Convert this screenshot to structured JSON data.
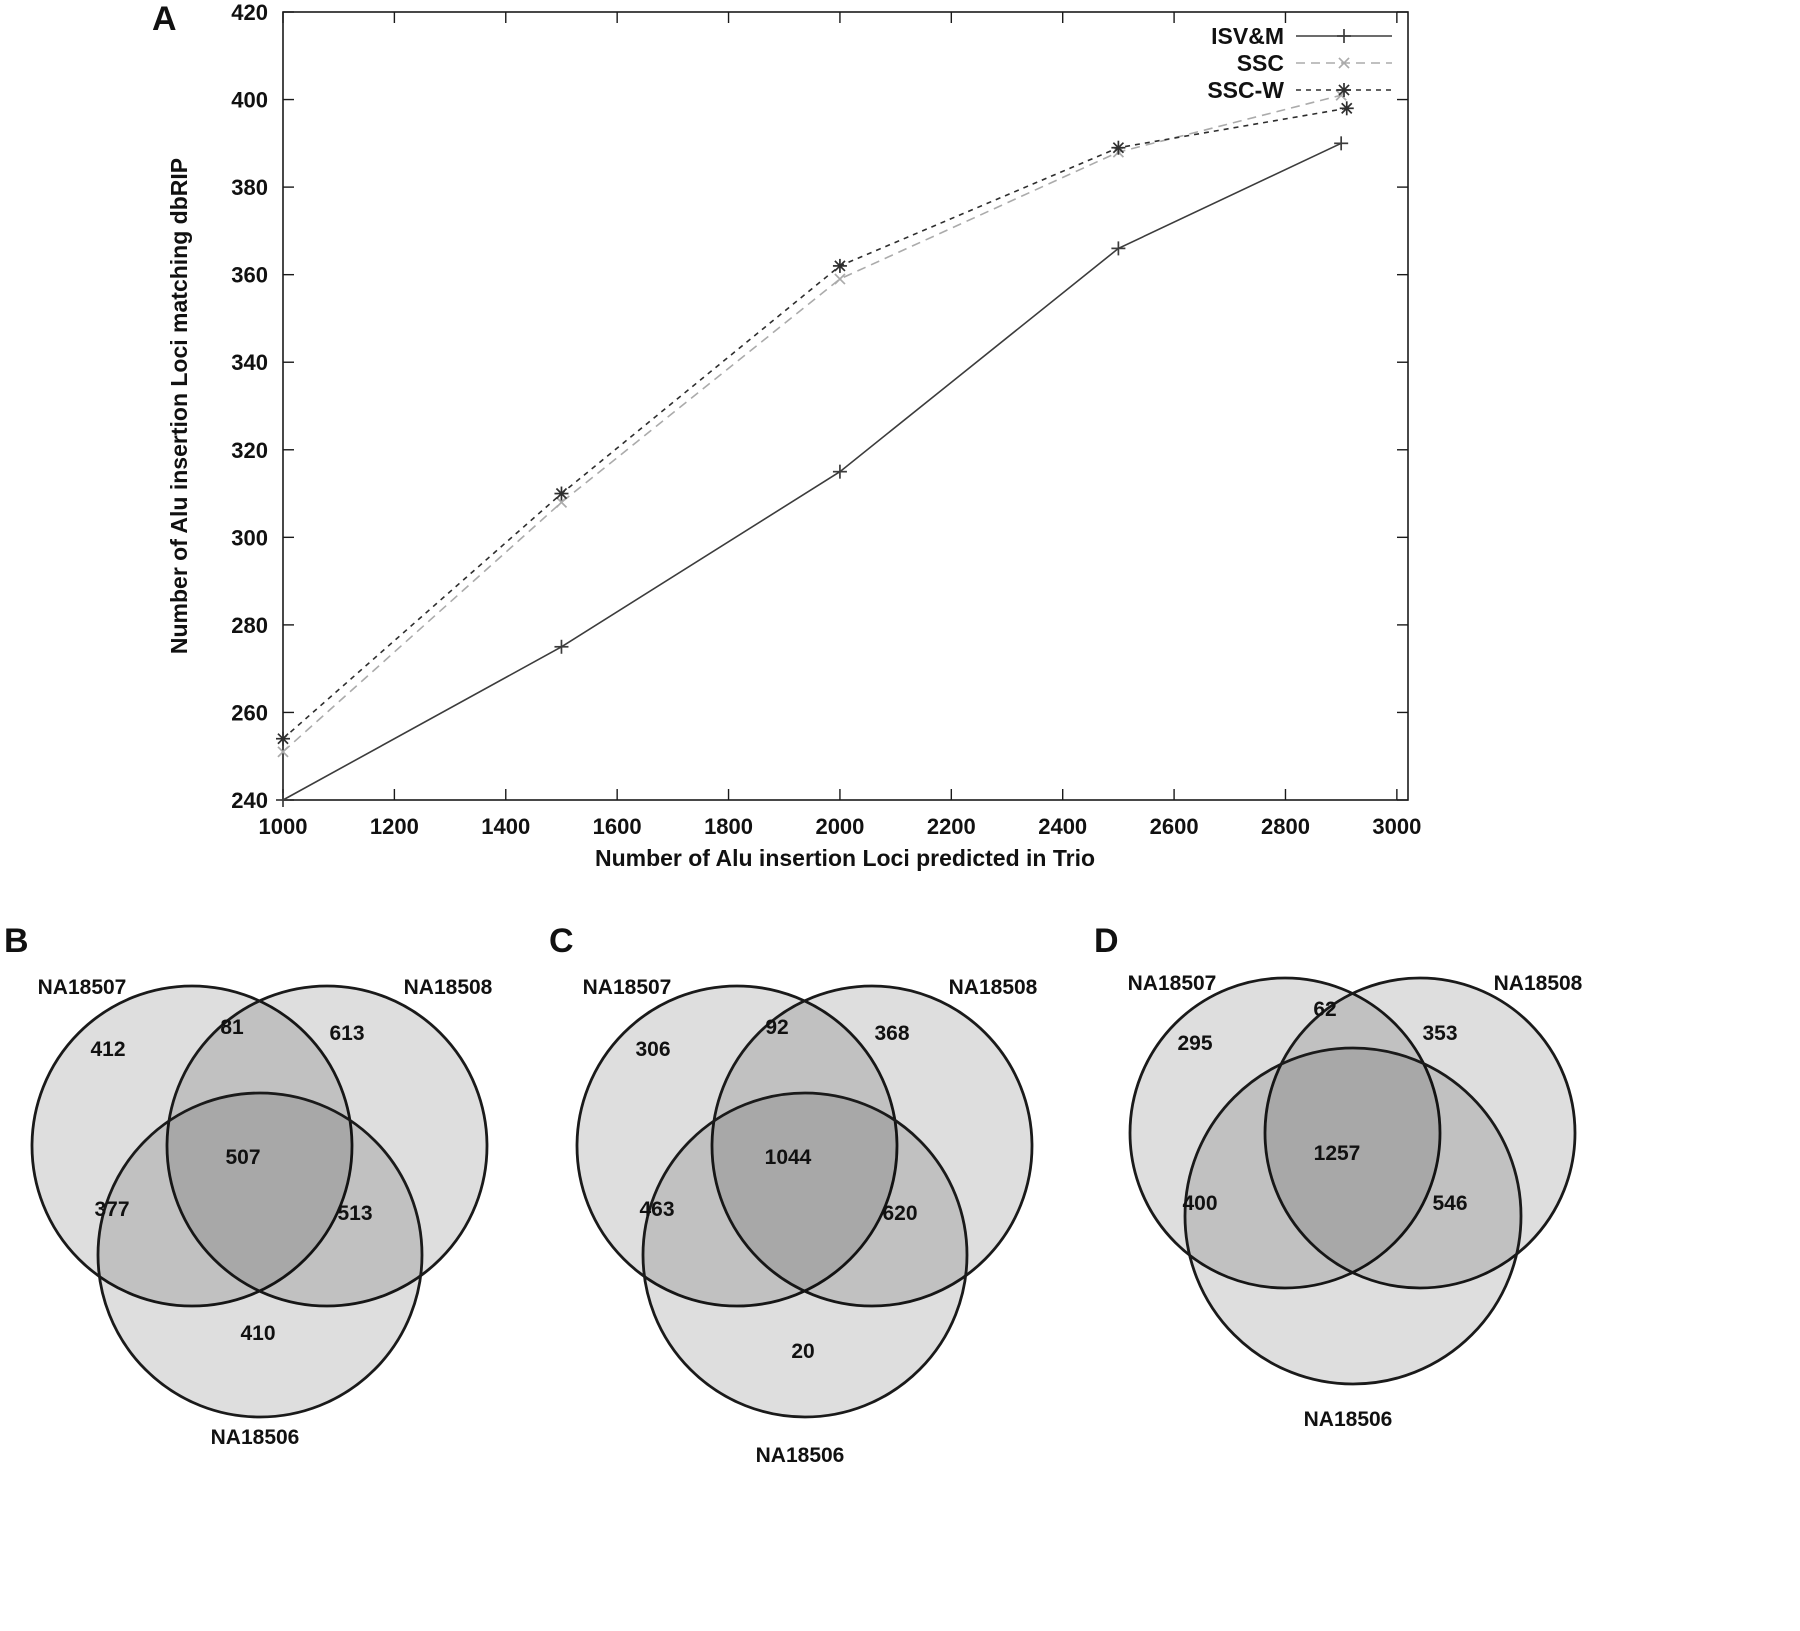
{
  "panels": {
    "a": "A",
    "b": "B",
    "c": "C",
    "d": "D"
  },
  "chart_data": [
    {
      "id": "panel-a-line-chart",
      "type": "line",
      "title": "",
      "xlabel": "Number of Alu insertion Loci predicted in Trio",
      "ylabel": "Number of Alu insertion Loci matching dbRIP",
      "xlim": [
        1000,
        3020
      ],
      "ylim": [
        240,
        420
      ],
      "xticks": [
        1000,
        1200,
        1400,
        1600,
        1800,
        2000,
        2200,
        2400,
        2600,
        2800,
        3000
      ],
      "yticks": [
        240,
        260,
        280,
        300,
        320,
        340,
        360,
        380,
        400,
        420
      ],
      "grid": false,
      "legend_position": "top-right",
      "series": [
        {
          "name": "ISV&M",
          "marker": "plus",
          "line_style": "solid",
          "color": "#3c3c3c",
          "x": [
            1000,
            1500,
            2000,
            2500,
            2900
          ],
          "y": [
            240,
            275,
            315,
            366,
            390
          ]
        },
        {
          "name": "SSC",
          "marker": "cross",
          "line_style": "dashed",
          "color": "#ababab",
          "x": [
            1000,
            1500,
            2000,
            2500,
            2900
          ],
          "y": [
            251,
            308,
            359,
            388,
            401
          ]
        },
        {
          "name": "SSC-W",
          "marker": "asterisk",
          "line_style": "dashed-fine",
          "color": "#2e2e2e",
          "x": [
            1000,
            1500,
            2000,
            2500,
            2910
          ],
          "y": [
            254,
            310,
            362,
            389,
            398
          ]
        }
      ]
    },
    {
      "id": "panel-b-venn",
      "type": "venn",
      "sets": [
        "NA18507",
        "NA18508",
        "NA18506"
      ],
      "regions": {
        "NA18507_only": 412,
        "NA18507_NA18508": 81,
        "NA18508_only": 613,
        "NA18507_NA18508_NA18506": 507,
        "NA18507_NA18506": 377,
        "NA18508_NA18506": 513,
        "NA18506_only": 410
      }
    },
    {
      "id": "panel-c-venn",
      "type": "venn",
      "sets": [
        "NA18507",
        "NA18508",
        "NA18506"
      ],
      "regions": {
        "NA18507_only": 306,
        "NA18507_NA18508": 92,
        "NA18508_only": 368,
        "NA18507_NA18508_NA18506": 1044,
        "NA18507_NA18506": 463,
        "NA18508_NA18506": 620,
        "NA18506_only": 20
      }
    },
    {
      "id": "panel-d-venn",
      "type": "venn",
      "sets": [
        "NA18507",
        "NA18508",
        "NA18506"
      ],
      "regions": {
        "NA18507_only": 295,
        "NA18507_NA18508": 62,
        "NA18508_only": 353,
        "NA18507_NA18508_NA18506": 1257,
        "NA18507_NA18506": 400,
        "NA18508_NA18506": 546
      }
    }
  ]
}
